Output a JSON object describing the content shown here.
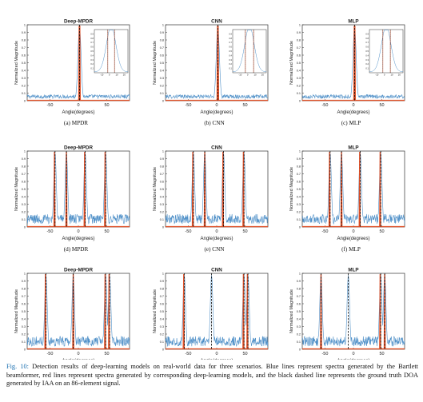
{
  "colors": {
    "bartlett": "#4f90c8",
    "dl": "#e0522a",
    "truth": "#0c0c0c",
    "caption_label": "#1a6fb0"
  },
  "caption": {
    "label": "Fig. 10:",
    "text": " Detection results of deep-learning models on real-world data for three scenarios. Blue lines represent spectra generated by the Bartlett beamformer, red lines represent spectra generated by corresponding deep-learning models, and the black dashed line represents the ground truth DOA generated by IAA on an 86-element signal."
  },
  "chart_data": [
    {
      "type": "line",
      "title": "Deep-MPDR",
      "subcaption": "(a) MPDR",
      "xlabel": "Angle(degrees)",
      "ylabel": "Normalized Magnitude",
      "xlim": [
        -90,
        90
      ],
      "ylim": [
        0,
        1
      ],
      "xticks": [
        -50,
        0,
        50
      ],
      "yticks": [
        0,
        0.1,
        0.2,
        0.3,
        0.4,
        0.5,
        0.6,
        0.7,
        0.8,
        0.9,
        1
      ],
      "ground_truth_doa": [
        2
      ],
      "bartlett_peaks": [
        2
      ],
      "dl_peaks": [
        1.5,
        2.5
      ],
      "inset": {
        "xlim": [
          -20,
          25
        ],
        "xticks": [
          -10,
          0,
          10,
          20
        ],
        "yticks": [
          0.1,
          0.2,
          0.3,
          0.4,
          0.5,
          0.6,
          0.7,
          0.8,
          0.9
        ],
        "dl_peaks": [
          -2,
          7
        ]
      }
    },
    {
      "type": "line",
      "title": "CNN",
      "subcaption": "(b) CNN",
      "xlabel": "Angle(degrees)",
      "ylabel": "Normalized Magnitude",
      "xlim": [
        -90,
        90
      ],
      "ylim": [
        0,
        1
      ],
      "xticks": [
        -50,
        0,
        50
      ],
      "yticks": [
        0,
        0.1,
        0.2,
        0.3,
        0.4,
        0.5,
        0.6,
        0.7,
        0.8,
        0.9,
        1
      ],
      "ground_truth_doa": [
        2
      ],
      "bartlett_peaks": [
        2
      ],
      "dl_peaks": [
        1.5,
        2.5
      ],
      "inset": {
        "xlim": [
          -20,
          25
        ],
        "xticks": [
          -10,
          0,
          10,
          20
        ],
        "yticks": [
          0.1,
          0.2,
          0.3,
          0.4,
          0.5,
          0.6,
          0.7,
          0.8,
          0.9
        ],
        "dl_peaks": [
          -3,
          8
        ]
      }
    },
    {
      "type": "line",
      "title": "MLP",
      "subcaption": "(c) MLP",
      "xlabel": "Angle(degrees)",
      "ylabel": "Normalized Magnitude",
      "xlim": [
        -90,
        90
      ],
      "ylim": [
        0,
        1
      ],
      "xticks": [
        -50,
        0,
        50
      ],
      "yticks": [
        0,
        0.1,
        0.2,
        0.3,
        0.4,
        0.5,
        0.6,
        0.7,
        0.8,
        0.9,
        1
      ],
      "ground_truth_doa": [
        2
      ],
      "bartlett_peaks": [
        2
      ],
      "dl_peaks": [
        1.5,
        2.5
      ],
      "inset": {
        "xlim": [
          -20,
          25
        ],
        "xticks": [
          -10,
          0,
          10,
          20
        ],
        "yticks": [
          0.1,
          0.2,
          0.3,
          0.4,
          0.5,
          0.6,
          0.7,
          0.8,
          0.9
        ],
        "dl_peaks": [
          -2,
          8
        ]
      }
    },
    {
      "type": "line",
      "title": "Deep-MPDR",
      "subcaption": "(d) MPDR",
      "xlabel": "Angle(degrees)",
      "ylabel": "Normalized Magnitude",
      "xlim": [
        -90,
        90
      ],
      "ylim": [
        0,
        1
      ],
      "xticks": [
        -50,
        0,
        50
      ],
      "yticks": [
        0,
        0.1,
        0.2,
        0.3,
        0.4,
        0.5,
        0.6,
        0.7,
        0.8,
        0.9,
        1
      ],
      "ground_truth_doa": [
        -41,
        -21,
        12,
        48
      ],
      "bartlett_peaks": [
        -41,
        -21,
        12,
        48
      ],
      "dl_peaks": [
        -42,
        -21,
        11,
        47
      ]
    },
    {
      "type": "line",
      "title": "CNN",
      "subcaption": "(e) CNN",
      "xlabel": "Angle(degrees)",
      "ylabel": "Normalized Magnitude",
      "xlim": [
        -90,
        90
      ],
      "ylim": [
        0,
        1
      ],
      "xticks": [
        -50,
        0,
        50
      ],
      "yticks": [
        0,
        0.1,
        0.2,
        0.3,
        0.4,
        0.5,
        0.6,
        0.7,
        0.8,
        0.9,
        1
      ],
      "ground_truth_doa": [
        -41,
        -21,
        12,
        48
      ],
      "bartlett_peaks": [
        -41,
        -21,
        12,
        48
      ],
      "dl_peaks": [
        -42,
        -21,
        11,
        47
      ]
    },
    {
      "type": "line",
      "title": "MLP",
      "subcaption": "(f) MLP",
      "xlabel": "Angle(degrees)",
      "ylabel": "Normalized Magnitude",
      "xlim": [
        -90,
        90
      ],
      "ylim": [
        0,
        1
      ],
      "xticks": [
        -50,
        0,
        50
      ],
      "yticks": [
        0,
        0.1,
        0.2,
        0.3,
        0.4,
        0.5,
        0.6,
        0.7,
        0.8,
        0.9,
        1
      ],
      "ground_truth_doa": [
        -41,
        -21,
        12,
        48
      ],
      "bartlett_peaks": [
        -41,
        -21,
        12,
        48
      ],
      "dl_peaks": [
        -42,
        -21,
        11,
        47
      ]
    },
    {
      "type": "line",
      "title": "Deep-MPDR",
      "subcaption": "(g) MPDR",
      "xlabel": "Angle(degrees)",
      "ylabel": "Normalized Magnitude",
      "xlim": [
        -90,
        90
      ],
      "ylim": [
        0,
        1
      ],
      "xticks": [
        -50,
        0,
        50
      ],
      "yticks": [
        0,
        0.1,
        0.2,
        0.3,
        0.4,
        0.5,
        0.6,
        0.7,
        0.8,
        0.9,
        1
      ],
      "ground_truth_doa": [
        -57,
        -9,
        48,
        55
      ],
      "bartlett_peaks": [
        -57,
        -9,
        48,
        55
      ],
      "dl_peaks": [
        -58,
        -9,
        47,
        54
      ]
    },
    {
      "type": "line",
      "title": "CNN",
      "subcaption": "(h) CNN",
      "xlabel": "Angle(degrees)",
      "ylabel": "Normalized Magnitude",
      "xlim": [
        -90,
        90
      ],
      "ylim": [
        0,
        1
      ],
      "xticks": [
        -50,
        0,
        50
      ],
      "yticks": [
        0,
        0.1,
        0.2,
        0.3,
        0.4,
        0.5,
        0.6,
        0.7,
        0.8,
        0.9,
        1
      ],
      "ground_truth_doa": [
        -57,
        -9,
        48,
        55
      ],
      "bartlett_peaks": [
        -57,
        -9,
        48,
        55
      ],
      "dl_peaks": [
        -58,
        47,
        54
      ]
    },
    {
      "type": "line",
      "title": "MLP",
      "subcaption": "(i) MLP",
      "xlabel": "Angle(degrees)",
      "ylabel": "Normalized Magnitude",
      "xlim": [
        -90,
        90
      ],
      "ylim": [
        0,
        1
      ],
      "xticks": [
        -50,
        0,
        50
      ],
      "yticks": [
        0,
        0.1,
        0.2,
        0.3,
        0.4,
        0.5,
        0.6,
        0.7,
        0.8,
        0.9,
        1
      ],
      "ground_truth_doa": [
        -57,
        -9,
        48,
        55
      ],
      "bartlett_peaks": [
        -57,
        -9,
        48,
        55
      ],
      "dl_peaks": [
        -57,
        47,
        55
      ]
    }
  ]
}
